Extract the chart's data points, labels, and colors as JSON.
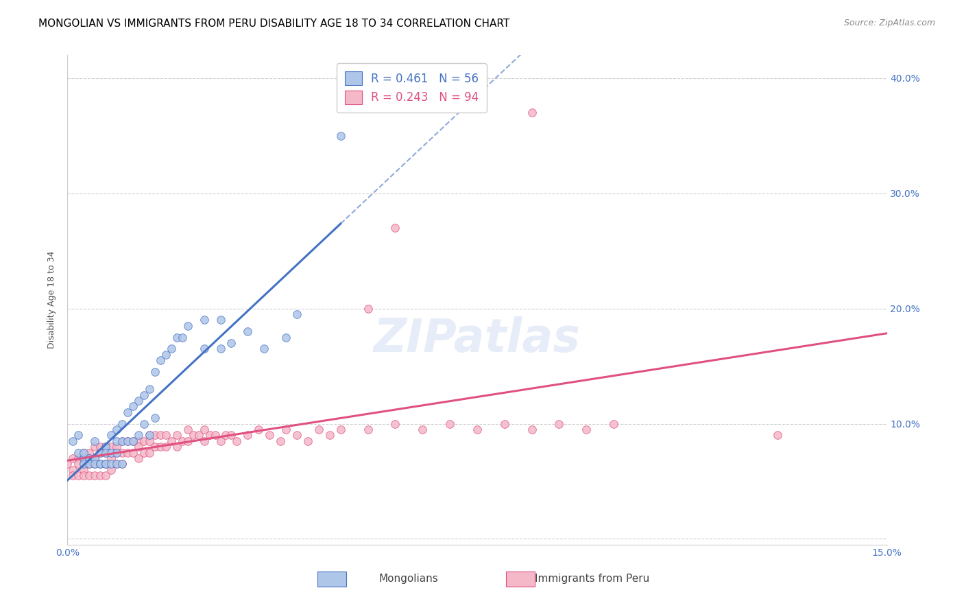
{
  "title": "MONGOLIAN VS IMMIGRANTS FROM PERU DISABILITY AGE 18 TO 34 CORRELATION CHART",
  "source": "Source: ZipAtlas.com",
  "ylabel": "Disability Age 18 to 34",
  "xlim": [
    0.0,
    0.15
  ],
  "ylim": [
    -0.005,
    0.42
  ],
  "ytick_positions": [
    0.0,
    0.1,
    0.2,
    0.3,
    0.4
  ],
  "ytick_labels_right": [
    "",
    "10.0%",
    "20.0%",
    "30.0%",
    "40.0%"
  ],
  "xtick_positions": [
    0.0,
    0.05,
    0.1,
    0.15
  ],
  "xtick_labels": [
    "0.0%",
    "",
    "",
    "15.0%"
  ],
  "mongolian_color": "#aec6e8",
  "peru_color": "#f4b8c8",
  "mongolian_line_color": "#4472c4",
  "peru_line_color": "#e05080",
  "mongolian_R": "0.461",
  "mongolian_N": "56",
  "peru_R": "0.243",
  "peru_N": "94",
  "mongolian_scatter_x": [
    0.001,
    0.002,
    0.002,
    0.003,
    0.003,
    0.003,
    0.004,
    0.004,
    0.005,
    0.005,
    0.005,
    0.006,
    0.006,
    0.006,
    0.007,
    0.007,
    0.007,
    0.007,
    0.008,
    0.008,
    0.008,
    0.009,
    0.009,
    0.009,
    0.009,
    0.01,
    0.01,
    0.01,
    0.011,
    0.011,
    0.012,
    0.012,
    0.013,
    0.013,
    0.014,
    0.014,
    0.015,
    0.015,
    0.016,
    0.016,
    0.017,
    0.018,
    0.019,
    0.02,
    0.021,
    0.022,
    0.025,
    0.025,
    0.028,
    0.028,
    0.03,
    0.033,
    0.036,
    0.04,
    0.042,
    0.05
  ],
  "mongolian_scatter_y": [
    0.085,
    0.075,
    0.09,
    0.07,
    0.075,
    0.065,
    0.07,
    0.065,
    0.085,
    0.07,
    0.065,
    0.075,
    0.065,
    0.065,
    0.08,
    0.075,
    0.065,
    0.065,
    0.09,
    0.075,
    0.065,
    0.095,
    0.085,
    0.075,
    0.065,
    0.1,
    0.085,
    0.065,
    0.11,
    0.085,
    0.115,
    0.085,
    0.12,
    0.09,
    0.125,
    0.1,
    0.13,
    0.09,
    0.145,
    0.105,
    0.155,
    0.16,
    0.165,
    0.175,
    0.175,
    0.185,
    0.19,
    0.165,
    0.19,
    0.165,
    0.17,
    0.18,
    0.165,
    0.175,
    0.195,
    0.35
  ],
  "peru_scatter_x": [
    0.0,
    0.001,
    0.001,
    0.001,
    0.002,
    0.002,
    0.002,
    0.003,
    0.003,
    0.003,
    0.003,
    0.004,
    0.004,
    0.004,
    0.004,
    0.005,
    0.005,
    0.005,
    0.005,
    0.006,
    0.006,
    0.006,
    0.006,
    0.007,
    0.007,
    0.007,
    0.007,
    0.008,
    0.008,
    0.008,
    0.009,
    0.009,
    0.009,
    0.01,
    0.01,
    0.01,
    0.011,
    0.011,
    0.012,
    0.012,
    0.013,
    0.013,
    0.013,
    0.014,
    0.014,
    0.015,
    0.015,
    0.015,
    0.016,
    0.016,
    0.017,
    0.017,
    0.018,
    0.018,
    0.019,
    0.02,
    0.02,
    0.021,
    0.022,
    0.022,
    0.023,
    0.024,
    0.025,
    0.025,
    0.026,
    0.027,
    0.028,
    0.029,
    0.03,
    0.031,
    0.033,
    0.035,
    0.037,
    0.039,
    0.04,
    0.042,
    0.044,
    0.046,
    0.048,
    0.05,
    0.055,
    0.06,
    0.065,
    0.07,
    0.075,
    0.08,
    0.085,
    0.09,
    0.095,
    0.1,
    0.055,
    0.06,
    0.085,
    0.13
  ],
  "peru_scatter_y": [
    0.065,
    0.07,
    0.06,
    0.055,
    0.07,
    0.065,
    0.055,
    0.075,
    0.065,
    0.06,
    0.055,
    0.075,
    0.07,
    0.065,
    0.055,
    0.08,
    0.07,
    0.065,
    0.055,
    0.08,
    0.075,
    0.065,
    0.055,
    0.08,
    0.075,
    0.065,
    0.055,
    0.08,
    0.07,
    0.06,
    0.08,
    0.075,
    0.065,
    0.085,
    0.075,
    0.065,
    0.085,
    0.075,
    0.085,
    0.075,
    0.085,
    0.08,
    0.07,
    0.085,
    0.075,
    0.09,
    0.085,
    0.075,
    0.09,
    0.08,
    0.09,
    0.08,
    0.09,
    0.08,
    0.085,
    0.09,
    0.08,
    0.085,
    0.095,
    0.085,
    0.09,
    0.09,
    0.095,
    0.085,
    0.09,
    0.09,
    0.085,
    0.09,
    0.09,
    0.085,
    0.09,
    0.095,
    0.09,
    0.085,
    0.095,
    0.09,
    0.085,
    0.095,
    0.09,
    0.095,
    0.095,
    0.1,
    0.095,
    0.1,
    0.095,
    0.1,
    0.095,
    0.1,
    0.095,
    0.1,
    0.2,
    0.27,
    0.37,
    0.09
  ],
  "legend_entries": [
    "Mongolians",
    "Immigrants from Peru"
  ],
  "watermark_text": "ZIPatlas",
  "background_color": "#ffffff",
  "grid_color": "#d0d0d0",
  "title_color": "#000000",
  "label_color": "#4472c4",
  "title_fontsize": 11,
  "axis_label_fontsize": 9
}
